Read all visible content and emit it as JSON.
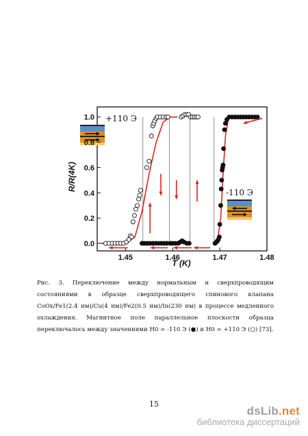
{
  "chart_data": {
    "type": "scatter",
    "xlabel": "T (K)",
    "ylabel": "R/R(4K)",
    "xlim": [
      1.444,
      1.48
    ],
    "ylim": [
      -0.06,
      1.08
    ],
    "x_ticks": [
      "1.45",
      "1.46",
      "1.47",
      "1.48"
    ],
    "y_ticks": [
      "0.0",
      "0.2",
      "0.4",
      "0.6",
      "0.8",
      "1.0"
    ],
    "annotations": [
      "+110 Э",
      "-110 Э"
    ],
    "series": [
      {
        "marker": "open-circle",
        "points": [
          [
            1.4458,
            0
          ],
          [
            1.4465,
            0
          ],
          [
            1.4472,
            0
          ],
          [
            1.4478,
            0
          ],
          [
            1.4484,
            0
          ],
          [
            1.449,
            0
          ],
          [
            1.4496,
            0
          ],
          [
            1.4502,
            0.01
          ],
          [
            1.4507,
            0.03
          ],
          [
            1.451,
            0.06
          ],
          [
            1.4513,
            0.05
          ],
          [
            1.4516,
            0.17
          ],
          [
            1.4519,
            0.22
          ],
          [
            1.4522,
            0.27
          ],
          [
            1.4525,
            0.3
          ],
          [
            1.4528,
            0.35
          ],
          [
            1.453,
            0.38
          ],
          [
            1.4532,
            0.42
          ],
          [
            1.4545,
            0.6
          ],
          [
            1.455,
            0.65
          ],
          [
            1.4555,
            0.85
          ],
          [
            1.4558,
            0.93
          ],
          [
            1.456,
            0.95
          ],
          [
            1.4562,
            0.97
          ],
          [
            1.4565,
            0.99
          ],
          [
            1.4568,
            1.0
          ],
          [
            1.4574,
            1.0
          ],
          [
            1.458,
            1.0
          ],
          [
            1.4586,
            1.0
          ],
          [
            1.459,
            1.0
          ],
          [
            1.4618,
            1.0
          ],
          [
            1.4622,
            1.01
          ],
          [
            1.4626,
            1.02
          ],
          [
            1.463,
            1.02
          ],
          [
            1.4634,
            1.02
          ],
          [
            1.4638,
            1.0
          ],
          [
            1.4642,
            1.0
          ],
          [
            1.4646,
            1.0
          ],
          [
            1.465,
            1.0
          ],
          [
            1.4654,
            1.0
          ]
        ]
      },
      {
        "marker": "filled-circle",
        "points": [
          [
            1.4535,
            0
          ],
          [
            1.454,
            0
          ],
          [
            1.4546,
            0
          ],
          [
            1.4552,
            0
          ],
          [
            1.4558,
            0
          ],
          [
            1.4564,
            0
          ],
          [
            1.457,
            0
          ],
          [
            1.4576,
            0
          ],
          [
            1.4582,
            0
          ],
          [
            1.4588,
            0
          ],
          [
            1.4595,
            0
          ],
          [
            1.46,
            0
          ],
          [
            1.4606,
            0
          ],
          [
            1.4612,
            0
          ],
          [
            1.4616,
            0.01
          ],
          [
            1.462,
            0.02
          ],
          [
            1.4624,
            0.01
          ],
          [
            1.463,
            0
          ],
          [
            1.4635,
            0
          ],
          [
            1.469,
            0
          ],
          [
            1.4693,
            0.01
          ],
          [
            1.4695,
            0.02
          ],
          [
            1.4697,
            0.03
          ],
          [
            1.4699,
            0.05
          ],
          [
            1.47,
            0.15
          ],
          [
            1.4702,
            0.3
          ],
          [
            1.4703,
            0.43
          ],
          [
            1.4704,
            0.5
          ],
          [
            1.4705,
            0.58
          ],
          [
            1.4706,
            0.6
          ],
          [
            1.4707,
            0.62
          ],
          [
            1.4708,
            0.75
          ],
          [
            1.471,
            0.9
          ],
          [
            1.4712,
            0.95
          ],
          [
            1.4715,
            0.98
          ],
          [
            1.472,
            1.0
          ],
          [
            1.4726,
            1.0
          ],
          [
            1.4732,
            1.0
          ],
          [
            1.4738,
            1.0
          ],
          [
            1.4744,
            1.0
          ],
          [
            1.475,
            1.0
          ],
          [
            1.4756,
            1.0
          ],
          [
            1.4762,
            1.0
          ],
          [
            1.4768,
            1.0
          ],
          [
            1.4774,
            1.0
          ],
          [
            1.478,
            1.0
          ]
        ]
      }
    ],
    "fit_curves": [
      {
        "color": "#e02020",
        "points": [
          [
            1.4445,
            0
          ],
          [
            1.449,
            0
          ],
          [
            1.4505,
            0.01
          ],
          [
            1.452,
            0.05
          ],
          [
            1.4535,
            0.25
          ],
          [
            1.455,
            0.55
          ],
          [
            1.4565,
            0.8
          ],
          [
            1.458,
            0.96
          ],
          [
            1.4595,
            1.0
          ],
          [
            1.461,
            1.0
          ]
        ]
      },
      {
        "color": "#e02020",
        "points": [
          [
            1.4685,
            0
          ],
          [
            1.4695,
            0.02
          ],
          [
            1.4702,
            0.2
          ],
          [
            1.4707,
            0.55
          ],
          [
            1.4712,
            0.85
          ],
          [
            1.4718,
            0.98
          ],
          [
            1.4725,
            1.0
          ],
          [
            1.4735,
            1.0
          ]
        ]
      }
    ],
    "grid": false
  },
  "caption": {
    "text": "Рис. 3. Переключение между нормальным и сверхпроводящим состояниями в образце сверхпроводящего спинового клапана CoOx/Fe1(2.4 нм)/Cu(4 нм)/Fe2(0.5 нм)/In(230 нм) в процессе медленного охлаждения. Магнитное поле параллельное плоскости образца переключалось между значениями H0 = -110 Э (●) и H0 = +110 Э (○) [73]."
  },
  "page": {
    "number": "15"
  },
  "watermark": {
    "brand_main": "dsLib",
    "brand_tld": ".net",
    "sub": "библиотека диссертаций"
  },
  "colors": {
    "fit": "#e02020",
    "arrow": "#e02020",
    "markers": "#111111",
    "inset_orange": "#e09020",
    "inset_blue": "#5a90c8"
  }
}
